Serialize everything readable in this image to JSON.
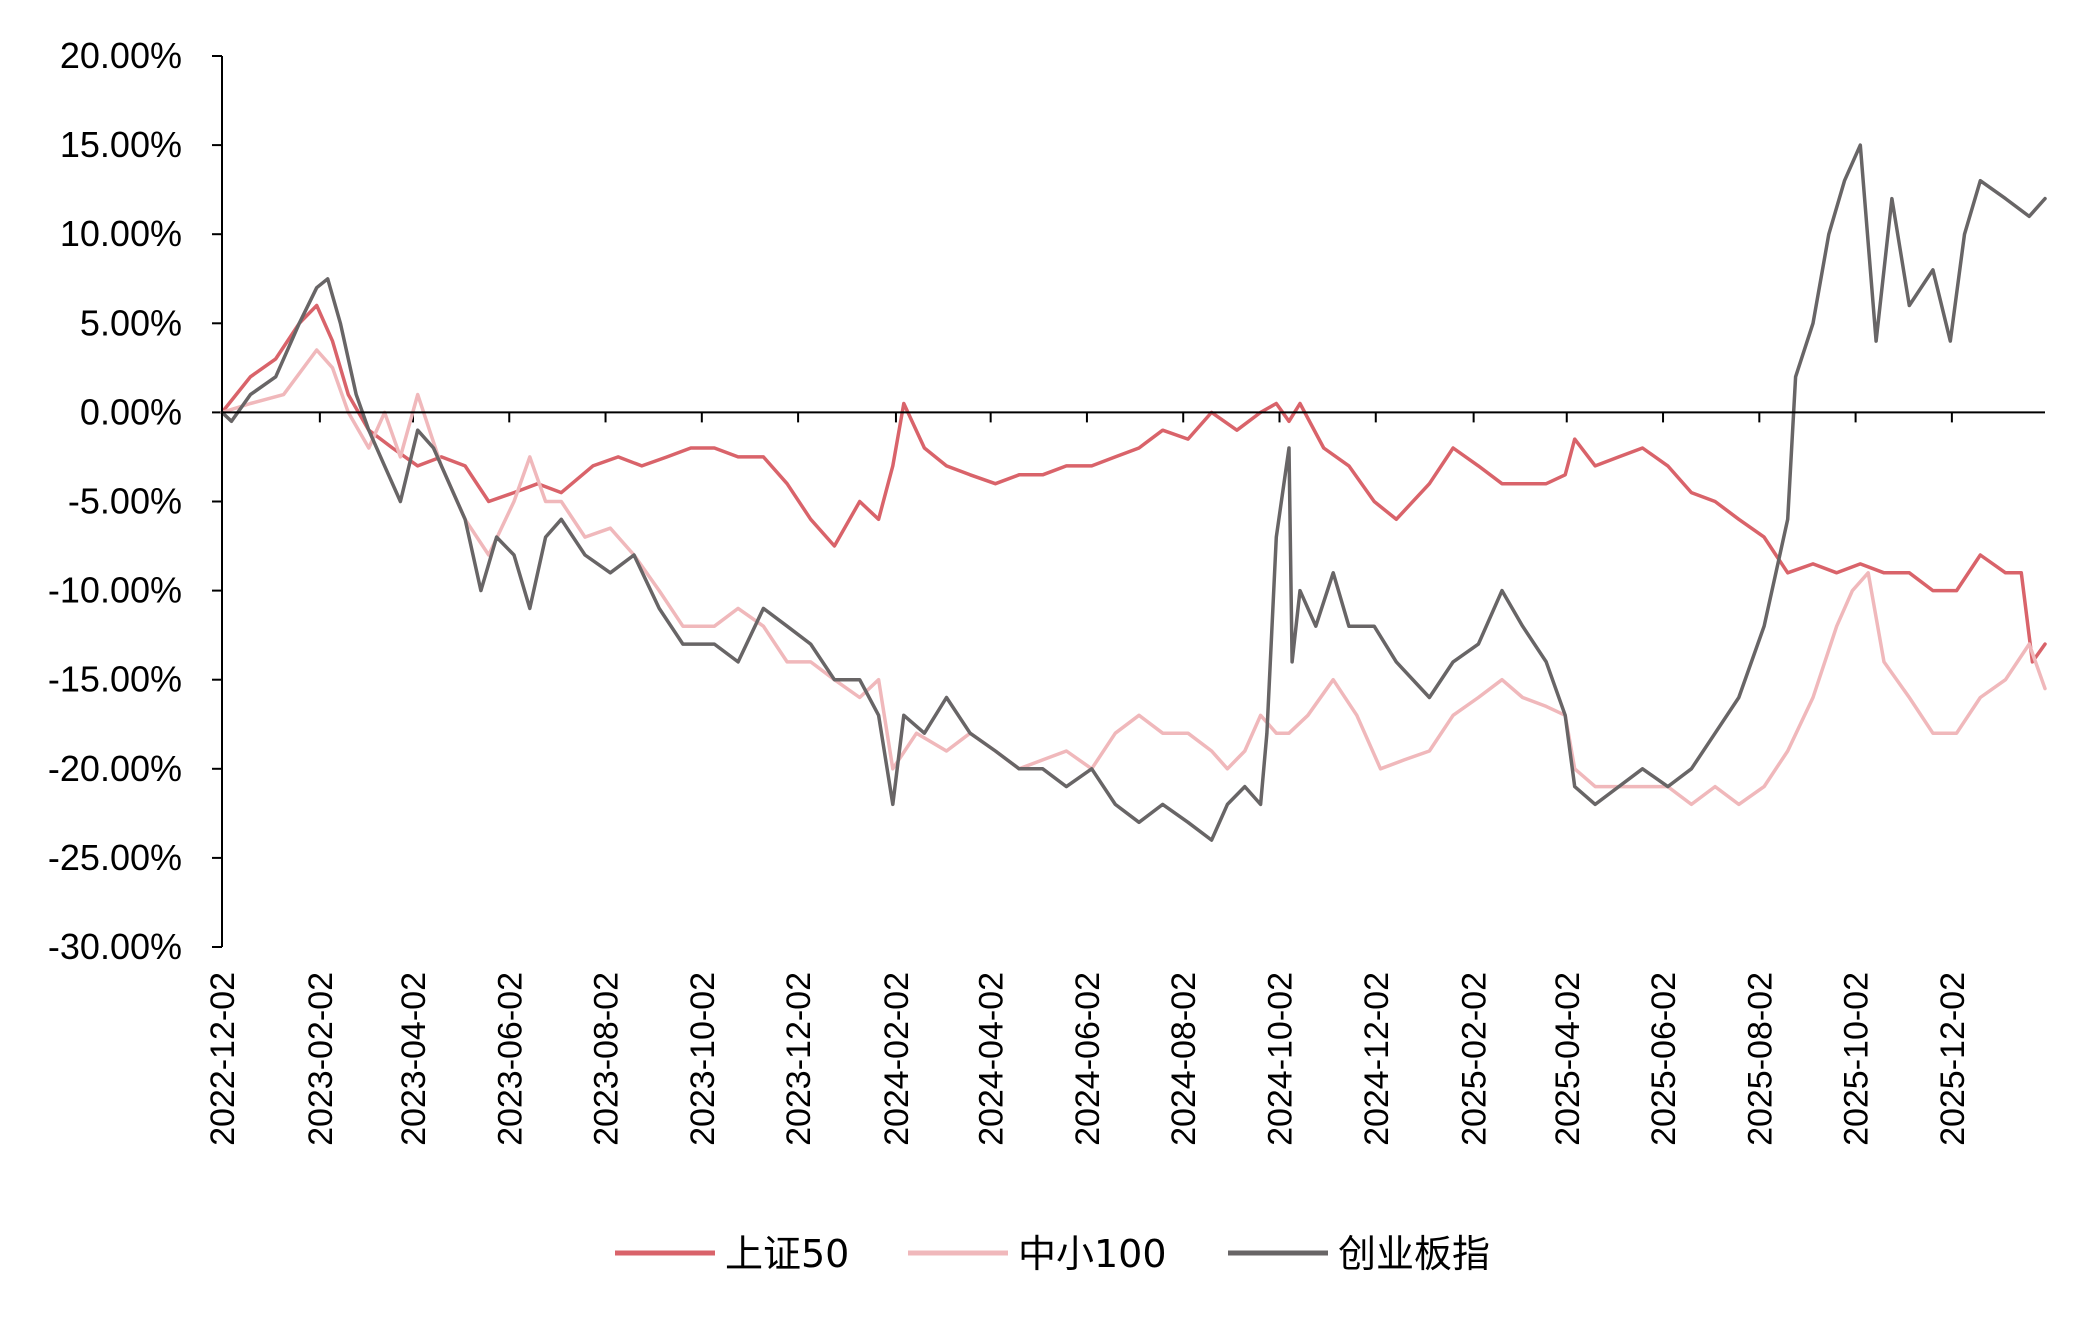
{
  "chart_data": {
    "type": "line",
    "xlabel": "",
    "ylabel": "",
    "x_range": [
      "2022-12-02",
      "2026-01-30"
    ],
    "ylim": [
      -30,
      20
    ],
    "y_tick_labels": [
      "20.00%",
      "15.00%",
      "10.00%",
      "5.00%",
      "0.00%",
      "-5.00%",
      "-10.00%",
      "-15.00%",
      "-20.00%",
      "-25.00%",
      "-30.00%"
    ],
    "x_tick_labels": [
      "2022-12-02",
      "2023-02-02",
      "2023-04-02",
      "2023-06-02",
      "2023-08-02",
      "2023-10-02",
      "2023-12-02",
      "2024-02-02",
      "2024-04-02",
      "2024-06-02",
      "2024-08-02",
      "2024-10-02",
      "2024-12-02",
      "2025-02-02",
      "2025-04-02",
      "2025-06-02",
      "2025-08-02",
      "2025-10-02",
      "2025-12-02"
    ],
    "grid": false,
    "legend_position": "bottom",
    "series": [
      {
        "name": "上证50",
        "color": "#d9636a",
        "points": [
          [
            "2022-12-02",
            0
          ],
          [
            "2022-12-20",
            2
          ],
          [
            "2023-01-05",
            3
          ],
          [
            "2023-01-20",
            5
          ],
          [
            "2023-01-31",
            6
          ],
          [
            "2023-02-10",
            4
          ],
          [
            "2023-02-20",
            1
          ],
          [
            "2023-03-05",
            -1
          ],
          [
            "2023-03-20",
            -2
          ],
          [
            "2023-04-05",
            -3
          ],
          [
            "2023-04-20",
            -2.5
          ],
          [
            "2023-05-05",
            -3
          ],
          [
            "2023-05-20",
            -5
          ],
          [
            "2023-06-05",
            -4.5
          ],
          [
            "2023-06-20",
            -4
          ],
          [
            "2023-07-05",
            -4.5
          ],
          [
            "2023-07-25",
            -3
          ],
          [
            "2023-08-10",
            -2.5
          ],
          [
            "2023-08-25",
            -3
          ],
          [
            "2023-09-10",
            -2.5
          ],
          [
            "2023-09-25",
            -2
          ],
          [
            "2023-10-10",
            -2
          ],
          [
            "2023-10-25",
            -2.5
          ],
          [
            "2023-11-10",
            -2.5
          ],
          [
            "2023-11-25",
            -4
          ],
          [
            "2023-12-10",
            -6
          ],
          [
            "2023-12-25",
            -7.5
          ],
          [
            "2024-01-10",
            -5
          ],
          [
            "2024-01-22",
            -6
          ],
          [
            "2024-01-31",
            -3
          ],
          [
            "2024-02-07",
            0.5
          ],
          [
            "2024-02-20",
            -2
          ],
          [
            "2024-03-05",
            -3
          ],
          [
            "2024-03-20",
            -3.5
          ],
          [
            "2024-04-05",
            -4
          ],
          [
            "2024-04-20",
            -3.5
          ],
          [
            "2024-05-05",
            -3.5
          ],
          [
            "2024-05-20",
            -3
          ],
          [
            "2024-06-05",
            -3
          ],
          [
            "2024-06-20",
            -2.5
          ],
          [
            "2024-07-05",
            -2
          ],
          [
            "2024-07-20",
            -1
          ],
          [
            "2024-08-05",
            -1.5
          ],
          [
            "2024-08-20",
            0
          ],
          [
            "2024-09-05",
            -1
          ],
          [
            "2024-09-20",
            0
          ],
          [
            "2024-09-30",
            0.5
          ],
          [
            "2024-10-08",
            -0.5
          ],
          [
            "2024-10-15",
            0.5
          ],
          [
            "2024-10-30",
            -2
          ],
          [
            "2024-11-15",
            -3
          ],
          [
            "2024-12-01",
            -5
          ],
          [
            "2024-12-15",
            -6
          ],
          [
            "2025-01-05",
            -4
          ],
          [
            "2025-01-20",
            -2
          ],
          [
            "2025-02-05",
            -3
          ],
          [
            "2025-02-20",
            -4
          ],
          [
            "2025-03-05",
            -4
          ],
          [
            "2025-03-20",
            -4
          ],
          [
            "2025-04-01",
            -3.5
          ],
          [
            "2025-04-07",
            -1.5
          ],
          [
            "2025-04-20",
            -3
          ],
          [
            "2025-05-05",
            -2.5
          ],
          [
            "2025-05-20",
            -2
          ],
          [
            "2025-06-05",
            -3
          ],
          [
            "2025-06-20",
            -4.5
          ],
          [
            "2025-07-05",
            -5
          ],
          [
            "2025-07-20",
            -6
          ],
          [
            "2025-08-05",
            -7
          ],
          [
            "2025-08-20",
            -9
          ],
          [
            "2025-09-05",
            -8.5
          ],
          [
            "2025-09-20",
            -9
          ],
          [
            "2025-10-05",
            -8.5
          ],
          [
            "2025-10-20",
            -9
          ],
          [
            "2025-11-05",
            -9
          ],
          [
            "2025-11-20",
            -10
          ],
          [
            "2025-12-05",
            -10
          ],
          [
            "2025-12-20",
            -8
          ],
          [
            "2026-01-05",
            -9
          ],
          [
            "2026-01-15",
            -9
          ],
          [
            "2026-01-22",
            -14
          ],
          [
            "2026-01-30",
            -13
          ]
        ]
      },
      {
        "name": "中小100",
        "color": "#f0b8bb",
        "points": [
          [
            "2022-12-02",
            0
          ],
          [
            "2022-12-20",
            0.5
          ],
          [
            "2023-01-10",
            1
          ],
          [
            "2023-01-31",
            3.5
          ],
          [
            "2023-02-10",
            2.5
          ],
          [
            "2023-02-20",
            0
          ],
          [
            "2023-03-05",
            -2
          ],
          [
            "2023-03-15",
            0
          ],
          [
            "2023-03-25",
            -2.5
          ],
          [
            "2023-04-05",
            1
          ],
          [
            "2023-04-20",
            -3
          ],
          [
            "2023-05-05",
            -6
          ],
          [
            "2023-05-20",
            -8
          ],
          [
            "2023-06-05",
            -5
          ],
          [
            "2023-06-15",
            -2.5
          ],
          [
            "2023-06-25",
            -5
          ],
          [
            "2023-07-05",
            -5
          ],
          [
            "2023-07-20",
            -7
          ],
          [
            "2023-08-05",
            -6.5
          ],
          [
            "2023-08-20",
            -8
          ],
          [
            "2023-09-05",
            -10
          ],
          [
            "2023-09-20",
            -12
          ],
          [
            "2023-10-10",
            -12
          ],
          [
            "2023-10-25",
            -11
          ],
          [
            "2023-11-10",
            -12
          ],
          [
            "2023-11-25",
            -14
          ],
          [
            "2023-12-10",
            -14
          ],
          [
            "2023-12-25",
            -15
          ],
          [
            "2024-01-10",
            -16
          ],
          [
            "2024-01-22",
            -15
          ],
          [
            "2024-01-31",
            -20
          ],
          [
            "2024-02-15",
            -18
          ],
          [
            "2024-03-05",
            -19
          ],
          [
            "2024-03-20",
            -18
          ],
          [
            "2024-04-05",
            -19
          ],
          [
            "2024-04-20",
            -20
          ],
          [
            "2024-05-05",
            -19.5
          ],
          [
            "2024-05-20",
            -19
          ],
          [
            "2024-06-05",
            -20
          ],
          [
            "2024-06-20",
            -18
          ],
          [
            "2024-07-05",
            -17
          ],
          [
            "2024-07-20",
            -18
          ],
          [
            "2024-08-05",
            -18
          ],
          [
            "2024-08-20",
            -19
          ],
          [
            "2024-08-30",
            -20
          ],
          [
            "2024-09-10",
            -19
          ],
          [
            "2024-09-20",
            -17
          ],
          [
            "2024-09-30",
            -18
          ],
          [
            "2024-10-08",
            -18
          ],
          [
            "2024-10-20",
            -17
          ],
          [
            "2024-11-05",
            -15
          ],
          [
            "2024-11-20",
            -17
          ],
          [
            "2024-12-05",
            -20
          ],
          [
            "2024-12-20",
            -19.5
          ],
          [
            "2025-01-05",
            -19
          ],
          [
            "2025-01-20",
            -17
          ],
          [
            "2025-02-05",
            -16
          ],
          [
            "2025-02-20",
            -15
          ],
          [
            "2025-03-05",
            -16
          ],
          [
            "2025-03-20",
            -16.5
          ],
          [
            "2025-04-01",
            -17
          ],
          [
            "2025-04-07",
            -20
          ],
          [
            "2025-04-20",
            -21
          ],
          [
            "2025-05-05",
            -21
          ],
          [
            "2025-05-20",
            -21
          ],
          [
            "2025-06-05",
            -21
          ],
          [
            "2025-06-20",
            -22
          ],
          [
            "2025-07-05",
            -21
          ],
          [
            "2025-07-20",
            -22
          ],
          [
            "2025-08-05",
            -21
          ],
          [
            "2025-08-20",
            -19
          ],
          [
            "2025-09-05",
            -16
          ],
          [
            "2025-09-20",
            -12
          ],
          [
            "2025-09-30",
            -10
          ],
          [
            "2025-10-10",
            -9
          ],
          [
            "2025-10-20",
            -14
          ],
          [
            "2025-11-05",
            -16
          ],
          [
            "2025-11-20",
            -18
          ],
          [
            "2025-12-05",
            -18
          ],
          [
            "2025-12-20",
            -16
          ],
          [
            "2026-01-05",
            -15
          ],
          [
            "2026-01-20",
            -13
          ],
          [
            "2026-01-30",
            -15.5
          ]
        ]
      },
      {
        "name": "创业板指",
        "color": "#686566",
        "points": [
          [
            "2022-12-02",
            0
          ],
          [
            "2022-12-08",
            -0.5
          ],
          [
            "2022-12-20",
            1
          ],
          [
            "2023-01-05",
            2
          ],
          [
            "2023-01-20",
            5
          ],
          [
            "2023-01-31",
            7
          ],
          [
            "2023-02-07",
            7.5
          ],
          [
            "2023-02-15",
            5
          ],
          [
            "2023-02-25",
            1
          ],
          [
            "2023-03-05",
            -1
          ],
          [
            "2023-03-15",
            -3
          ],
          [
            "2023-03-25",
            -5
          ],
          [
            "2023-04-05",
            -1
          ],
          [
            "2023-04-15",
            -2
          ],
          [
            "2023-04-25",
            -4
          ],
          [
            "2023-05-05",
            -6
          ],
          [
            "2023-05-15",
            -10
          ],
          [
            "2023-05-25",
            -7
          ],
          [
            "2023-06-05",
            -8
          ],
          [
            "2023-06-15",
            -11
          ],
          [
            "2023-06-25",
            -7
          ],
          [
            "2023-07-05",
            -6
          ],
          [
            "2023-07-20",
            -8
          ],
          [
            "2023-08-05",
            -9
          ],
          [
            "2023-08-20",
            -8
          ],
          [
            "2023-09-05",
            -11
          ],
          [
            "2023-09-20",
            -13
          ],
          [
            "2023-10-10",
            -13
          ],
          [
            "2023-10-25",
            -14
          ],
          [
            "2023-11-10",
            -11
          ],
          [
            "2023-11-25",
            -12
          ],
          [
            "2023-12-10",
            -13
          ],
          [
            "2023-12-25",
            -15
          ],
          [
            "2024-01-10",
            -15
          ],
          [
            "2024-01-22",
            -17
          ],
          [
            "2024-01-31",
            -22
          ],
          [
            "2024-02-07",
            -17
          ],
          [
            "2024-02-20",
            -18
          ],
          [
            "2024-03-05",
            -16
          ],
          [
            "2024-03-20",
            -18
          ],
          [
            "2024-04-05",
            -19
          ],
          [
            "2024-04-20",
            -20
          ],
          [
            "2024-05-05",
            -20
          ],
          [
            "2024-05-20",
            -21
          ],
          [
            "2024-06-05",
            -20
          ],
          [
            "2024-06-20",
            -22
          ],
          [
            "2024-07-05",
            -23
          ],
          [
            "2024-07-20",
            -22
          ],
          [
            "2024-08-05",
            -23
          ],
          [
            "2024-08-20",
            -24
          ],
          [
            "2024-08-30",
            -22
          ],
          [
            "2024-09-10",
            -21
          ],
          [
            "2024-09-20",
            -22
          ],
          [
            "2024-09-24",
            -18
          ],
          [
            "2024-09-30",
            -7
          ],
          [
            "2024-10-08",
            -2
          ],
          [
            "2024-10-10",
            -14
          ],
          [
            "2024-10-15",
            -10
          ],
          [
            "2024-10-25",
            -12
          ],
          [
            "2024-11-05",
            -9
          ],
          [
            "2024-11-15",
            -12
          ],
          [
            "2024-12-01",
            -12
          ],
          [
            "2024-12-15",
            -14
          ],
          [
            "2025-01-05",
            -16
          ],
          [
            "2025-01-20",
            -14
          ],
          [
            "2025-02-05",
            -13
          ],
          [
            "2025-02-20",
            -10
          ],
          [
            "2025-03-05",
            -12
          ],
          [
            "2025-03-20",
            -14
          ],
          [
            "2025-04-01",
            -17
          ],
          [
            "2025-04-07",
            -21
          ],
          [
            "2025-04-20",
            -22
          ],
          [
            "2025-05-05",
            -21
          ],
          [
            "2025-05-20",
            -20
          ],
          [
            "2025-06-05",
            -21
          ],
          [
            "2025-06-20",
            -20
          ],
          [
            "2025-07-05",
            -18
          ],
          [
            "2025-07-20",
            -16
          ],
          [
            "2025-08-05",
            -12
          ],
          [
            "2025-08-20",
            -6
          ],
          [
            "2025-08-25",
            2
          ],
          [
            "2025-09-05",
            5
          ],
          [
            "2025-09-15",
            10
          ],
          [
            "2025-09-25",
            13
          ],
          [
            "2025-10-05",
            15
          ],
          [
            "2025-10-15",
            4
          ],
          [
            "2025-10-25",
            12
          ],
          [
            "2025-11-05",
            6
          ],
          [
            "2025-11-20",
            8
          ],
          [
            "2025-12-01",
            4
          ],
          [
            "2025-12-10",
            10
          ],
          [
            "2025-12-20",
            13
          ],
          [
            "2026-01-05",
            12
          ],
          [
            "2026-01-20",
            11
          ],
          [
            "2026-01-30",
            12
          ]
        ]
      }
    ]
  }
}
